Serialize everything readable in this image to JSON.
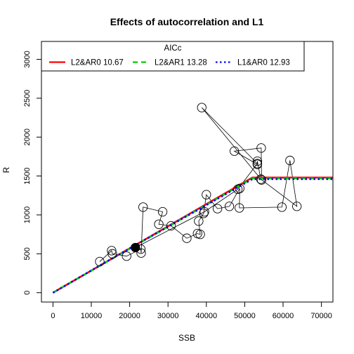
{
  "chart_data": {
    "type": "scatter",
    "title": "Effects of autocorrelation and L1",
    "xlabel": "SSB",
    "ylabel": "R",
    "xlim": [
      -3000,
      73000
    ],
    "ylim": [
      -120,
      3230
    ],
    "x_ticks": [
      0,
      10000,
      20000,
      30000,
      40000,
      50000,
      60000,
      70000
    ],
    "y_ticks": [
      0,
      500,
      1000,
      1500,
      2000,
      2500,
      3000
    ],
    "legend": {
      "title": "AICc",
      "placement": "top",
      "entries": [
        {
          "label": "L2&AR0 10.67",
          "color": "#ff0000",
          "style": "solid"
        },
        {
          "label": "L2&AR1 13.28",
          "color": "#00cd00",
          "style": "dashed"
        },
        {
          "label": "L1&AR0 12.93",
          "color": "#0000ff",
          "style": "dotted"
        }
      ]
    },
    "observations": {
      "name": "",
      "style": "open circles joined in time order",
      "highlight_last": true,
      "points": [
        {
          "x": 12200,
          "y": 400
        },
        {
          "x": 15300,
          "y": 540
        },
        {
          "x": 15500,
          "y": 500
        },
        {
          "x": 19200,
          "y": 470
        },
        {
          "x": 22900,
          "y": 560
        },
        {
          "x": 23000,
          "y": 510
        },
        {
          "x": 23500,
          "y": 1100
        },
        {
          "x": 28600,
          "y": 1040
        },
        {
          "x": 27600,
          "y": 880
        },
        {
          "x": 30800,
          "y": 860
        },
        {
          "x": 34900,
          "y": 700
        },
        {
          "x": 37700,
          "y": 760
        },
        {
          "x": 38400,
          "y": 750
        },
        {
          "x": 38000,
          "y": 920
        },
        {
          "x": 39300,
          "y": 1020
        },
        {
          "x": 40000,
          "y": 1260
        },
        {
          "x": 42900,
          "y": 1080
        },
        {
          "x": 46000,
          "y": 1110
        },
        {
          "x": 48700,
          "y": 1340
        },
        {
          "x": 48600,
          "y": 1090
        },
        {
          "x": 59700,
          "y": 1100
        },
        {
          "x": 61800,
          "y": 1700
        },
        {
          "x": 63600,
          "y": 1110
        },
        {
          "x": 54200,
          "y": 1460
        },
        {
          "x": 53300,
          "y": 1690
        },
        {
          "x": 53300,
          "y": 1650
        },
        {
          "x": 47300,
          "y": 1820
        },
        {
          "x": 54300,
          "y": 1860
        },
        {
          "x": 54400,
          "y": 1450
        },
        {
          "x": 38800,
          "y": 2380
        },
        {
          "x": 53300,
          "y": 1660
        },
        {
          "x": 48200,
          "y": 1330
        },
        {
          "x": 39500,
          "y": 1040
        },
        {
          "x": 21500,
          "y": 580
        }
      ]
    },
    "series": [
      {
        "legend_index": 0,
        "color": "#ff0000",
        "style": "solid",
        "x": [
          0,
          52000,
          73000
        ],
        "y": [
          0,
          1480,
          1480
        ]
      },
      {
        "legend_index": 1,
        "color": "#00cd00",
        "style": "dashed",
        "x": [
          0,
          52000,
          73000
        ],
        "y": [
          0,
          1470,
          1470
        ]
      },
      {
        "legend_index": 2,
        "color": "#0000ff",
        "style": "dotted",
        "x": [
          0,
          20000,
          52000,
          73000
        ],
        "y": [
          0,
          570,
          1460,
          1460
        ]
      }
    ]
  }
}
